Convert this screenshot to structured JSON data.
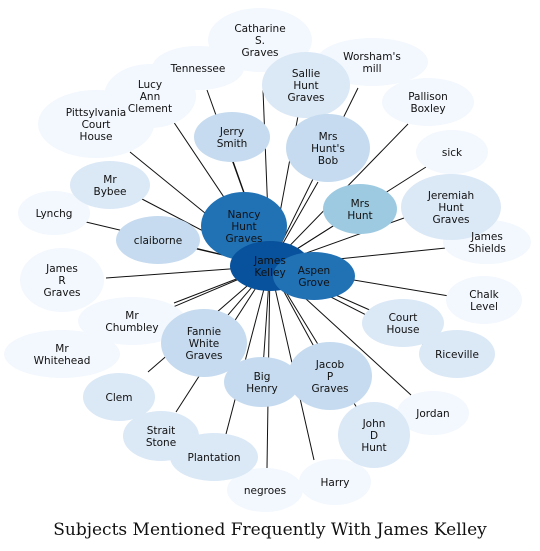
{
  "caption": "Subjects Mentioned Frequently With James Kelley",
  "center": {
    "label": "James Kelley",
    "color": "#08519c"
  },
  "palette": {
    "very_light": "#f3f8fe",
    "light": "#dbe8f6",
    "medium_light": "#c6dbef",
    "medium": "#9ecae1",
    "strong": "#2171b5",
    "dark": "#08519c"
  },
  "nodes": [
    {
      "id": "catharine-s-graves",
      "label": "Catharine S. Graves",
      "shade": "very_light"
    },
    {
      "id": "tennessee",
      "label": "Tennessee",
      "shade": "very_light"
    },
    {
      "id": "worshams-mill",
      "label": "Worsham's mill",
      "shade": "very_light"
    },
    {
      "id": "lucy-ann-clement",
      "label": "Lucy Ann Clement",
      "shade": "very_light"
    },
    {
      "id": "sallie-hunt-graves",
      "label": "Sallie Hunt Graves",
      "shade": "light"
    },
    {
      "id": "pallison-boxley",
      "label": "Pallison Boxley",
      "shade": "very_light"
    },
    {
      "id": "pittsylvania-court-house",
      "label": "Pittsylvania Court House",
      "shade": "very_light"
    },
    {
      "id": "jerry-smith",
      "label": "Jerry Smith",
      "shade": "medium_light"
    },
    {
      "id": "mrs-hunts-bob",
      "label": "Mrs Hunt's Bob",
      "shade": "medium_light"
    },
    {
      "id": "sick",
      "label": "sick",
      "shade": "very_light"
    },
    {
      "id": "mr-bybee",
      "label": "Mr Bybee",
      "shade": "light"
    },
    {
      "id": "jeremiah-hunt-graves",
      "label": "Jeremiah Hunt Graves",
      "shade": "light"
    },
    {
      "id": "lynchg",
      "label": "Lynchg",
      "shade": "very_light"
    },
    {
      "id": "nancy-hunt-graves",
      "label": "Nancy Hunt Graves",
      "shade": "strong"
    },
    {
      "id": "mrs-hunt",
      "label": "Mrs Hunt",
      "shade": "medium"
    },
    {
      "id": "claiborne",
      "label": "claiborne",
      "shade": "medium_light"
    },
    {
      "id": "james-shields",
      "label": "James Shields",
      "shade": "very_light"
    },
    {
      "id": "james-r-graves",
      "label": "James R Graves",
      "shade": "very_light"
    },
    {
      "id": "aspen-grove",
      "label": "Aspen Grove",
      "shade": "strong"
    },
    {
      "id": "chalk-level",
      "label": "Chalk Level",
      "shade": "very_light"
    },
    {
      "id": "mr-chumbley",
      "label": "Mr Chumbley",
      "shade": "very_light"
    },
    {
      "id": "court-house",
      "label": "Court House",
      "shade": "light"
    },
    {
      "id": "fannie-white-graves",
      "label": "Fannie White Graves",
      "shade": "medium_light"
    },
    {
      "id": "mr-whitehead",
      "label": "Mr Whitehead",
      "shade": "very_light"
    },
    {
      "id": "riceville",
      "label": "Riceville",
      "shade": "light"
    },
    {
      "id": "big-henry",
      "label": "Big Henry",
      "shade": "medium_light"
    },
    {
      "id": "jacob-p-graves",
      "label": "Jacob P Graves",
      "shade": "medium_light"
    },
    {
      "id": "clem",
      "label": "Clem",
      "shade": "light"
    },
    {
      "id": "jordan",
      "label": "Jordan",
      "shade": "very_light"
    },
    {
      "id": "strait-stone",
      "label": "Strait Stone",
      "shade": "light"
    },
    {
      "id": "john-d-hunt",
      "label": "John D Hunt",
      "shade": "light"
    },
    {
      "id": "plantation",
      "label": "Plantation",
      "shade": "light"
    },
    {
      "id": "harry",
      "label": "Harry",
      "shade": "very_light"
    },
    {
      "id": "negroes",
      "label": "negroes",
      "shade": "very_light"
    }
  ]
}
